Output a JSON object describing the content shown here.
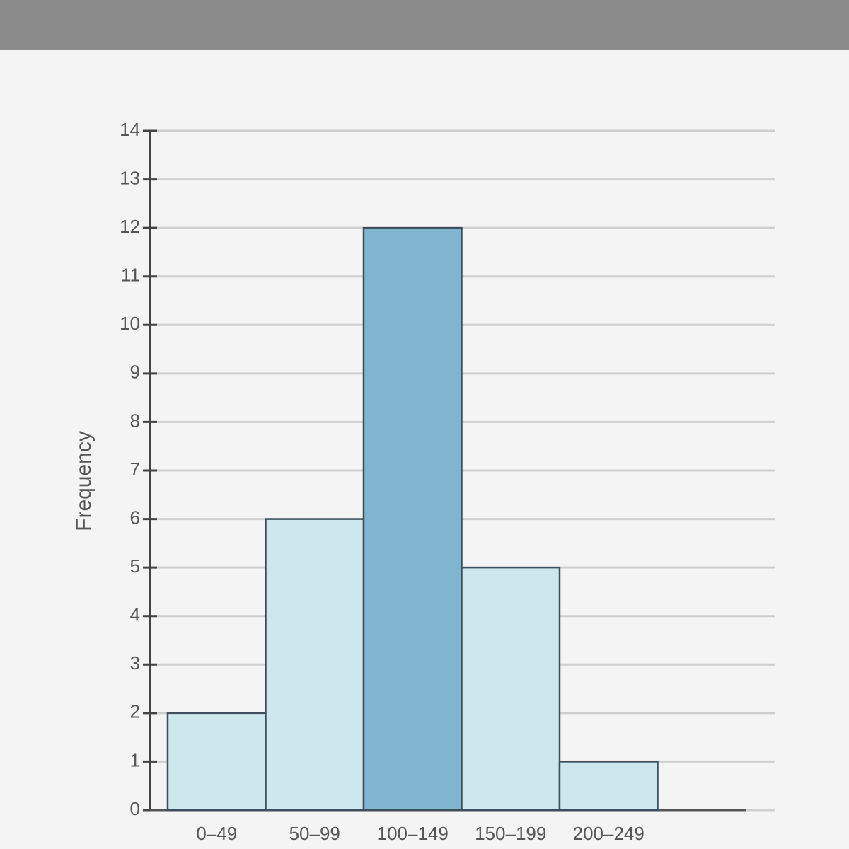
{
  "chart_data": {
    "type": "bar",
    "y_label": "Frequency",
    "categories": [
      "0–49",
      "50–99",
      "100–149",
      "150–199",
      "200–249"
    ],
    "values": [
      2,
      6,
      12,
      5,
      1
    ],
    "colors": [
      "#cde8ec",
      "#cde8ec",
      "#7fb5cf",
      "#cde8ec",
      "#cde8ec"
    ],
    "ylim": [
      0,
      14
    ],
    "yticks": [
      0,
      1,
      2,
      3,
      4,
      5,
      6,
      7,
      8,
      9,
      10,
      11,
      12,
      13,
      14
    ],
    "grid": true
  }
}
